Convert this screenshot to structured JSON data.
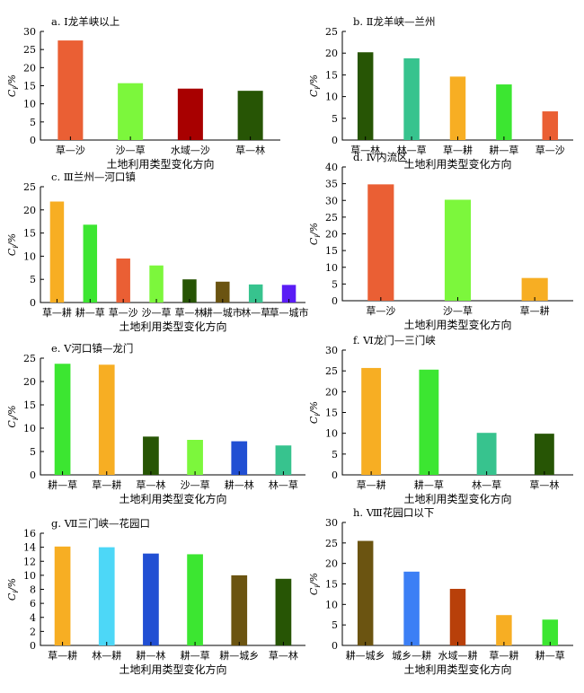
{
  "chart_data": [
    {
      "type": "bar",
      "title": "a. Ⅰ龙羊峡以上",
      "ylabel": "Ci/%",
      "xlabel": "土地利用类型变化方向",
      "ylim": [
        0,
        30
      ],
      "yticks": [
        0,
        5,
        10,
        15,
        20,
        25,
        30
      ],
      "categories": [
        "草—沙",
        "沙—草",
        "水域—沙",
        "草—林"
      ],
      "values": [
        27.5,
        15.7,
        14.2,
        13.6
      ],
      "colors": [
        "#ea5f34",
        "#7cf73c",
        "#a80000",
        "#275505"
      ]
    },
    {
      "type": "bar",
      "title": "b. Ⅱ龙羊峡—兰州",
      "ylabel": "Ci/%",
      "xlabel": "土地利用类型变化方向",
      "ylim": [
        0,
        25
      ],
      "yticks": [
        0,
        5,
        10,
        15,
        20,
        25
      ],
      "categories": [
        "草—林",
        "林—草",
        "草—耕",
        "耕—草",
        "草—沙"
      ],
      "values": [
        20.2,
        18.8,
        14.6,
        12.8,
        6.6
      ],
      "colors": [
        "#275505",
        "#37c38e",
        "#f7ae23",
        "#3ce631",
        "#ea5f34"
      ]
    },
    {
      "type": "bar",
      "title": "c. Ⅲ兰州—河口镇",
      "ylabel": "Ci/%",
      "xlabel": "土地利用类型变化方向",
      "ylim": [
        0,
        25
      ],
      "yticks": [
        0,
        5,
        10,
        15,
        20,
        25
      ],
      "categories": [
        "草—耕",
        "耕—草",
        "草—沙",
        "沙—草",
        "草—林",
        "耕—城市",
        "林—草",
        "草—城市"
      ],
      "values": [
        21.8,
        16.8,
        9.5,
        8.0,
        5.0,
        4.5,
        3.9,
        3.8
      ],
      "colors": [
        "#f7ae23",
        "#3ce631",
        "#ea5f34",
        "#7cf73c",
        "#275505",
        "#6b5411",
        "#37c38e",
        "#5a1cf5"
      ]
    },
    {
      "type": "bar",
      "title": "d. Ⅳ内流区",
      "ylabel": "Ci/%",
      "xlabel": "土地利用类型变化方向",
      "ylim": [
        0,
        40
      ],
      "yticks": [
        0,
        5,
        10,
        15,
        20,
        25,
        30,
        35,
        40
      ],
      "categories": [
        "草—沙",
        "沙—草",
        "草—耕"
      ],
      "values": [
        34.8,
        30.2,
        6.8
      ],
      "colors": [
        "#ea5f34",
        "#7cf73c",
        "#f7ae23"
      ]
    },
    {
      "type": "bar",
      "title": "e. Ⅴ河口镇—龙门",
      "ylabel": "Ci/%",
      "xlabel": "土地利用类型变化方向",
      "ylim": [
        0,
        25
      ],
      "yticks": [
        0,
        5,
        10,
        15,
        20,
        25
      ],
      "categories": [
        "耕—草",
        "草—耕",
        "草—林",
        "沙—草",
        "耕—林",
        "林—草"
      ],
      "values": [
        23.8,
        23.6,
        8.2,
        7.5,
        7.2,
        6.3
      ],
      "colors": [
        "#3ce631",
        "#f7ae23",
        "#275505",
        "#7cf73c",
        "#214fd3",
        "#37c38e"
      ]
    },
    {
      "type": "bar",
      "title": "f. Ⅵ龙门—三门峡",
      "ylabel": "Ci/%",
      "xlabel": "土地利用类型变化方向",
      "ylim": [
        0,
        30
      ],
      "yticks": [
        0,
        5,
        10,
        15,
        20,
        25,
        30
      ],
      "categories": [
        "草—耕",
        "耕—草",
        "林—草",
        "草—林"
      ],
      "values": [
        25.7,
        25.3,
        10.1,
        9.9
      ],
      "colors": [
        "#f7ae23",
        "#3ce631",
        "#37c38e",
        "#275505"
      ]
    },
    {
      "type": "bar",
      "title": "g. Ⅶ三门峡—花园口",
      "ylabel": "Ci/%",
      "xlabel": "土地利用类型变化方向",
      "ylim": [
        0,
        16
      ],
      "yticks": [
        0,
        2,
        4,
        6,
        8,
        10,
        12,
        14,
        16
      ],
      "categories": [
        "草—耕",
        "林—耕",
        "耕—林",
        "耕—草",
        "耕—城乡",
        "草—林"
      ],
      "values": [
        14.1,
        14.0,
        13.1,
        13.0,
        10.0,
        9.5
      ],
      "colors": [
        "#f7ae23",
        "#4dd7f7",
        "#214fd3",
        "#3ce631",
        "#6b5411",
        "#275505"
      ]
    },
    {
      "type": "bar",
      "title": "h. Ⅷ花园口以下",
      "ylabel": "Ci/%",
      "xlabel": "土地利用类型变化方向",
      "ylim": [
        0,
        30
      ],
      "yticks": [
        0,
        5,
        10,
        15,
        20,
        25,
        30
      ],
      "categories": [
        "耕—城乡",
        "城乡—耕",
        "水域—耕",
        "草—耕",
        "耕—草"
      ],
      "values": [
        25.5,
        18.0,
        13.8,
        7.4,
        6.3
      ],
      "colors": [
        "#6b5411",
        "#3c7ff5",
        "#b8400a",
        "#f7ae23",
        "#3ce631"
      ]
    }
  ]
}
